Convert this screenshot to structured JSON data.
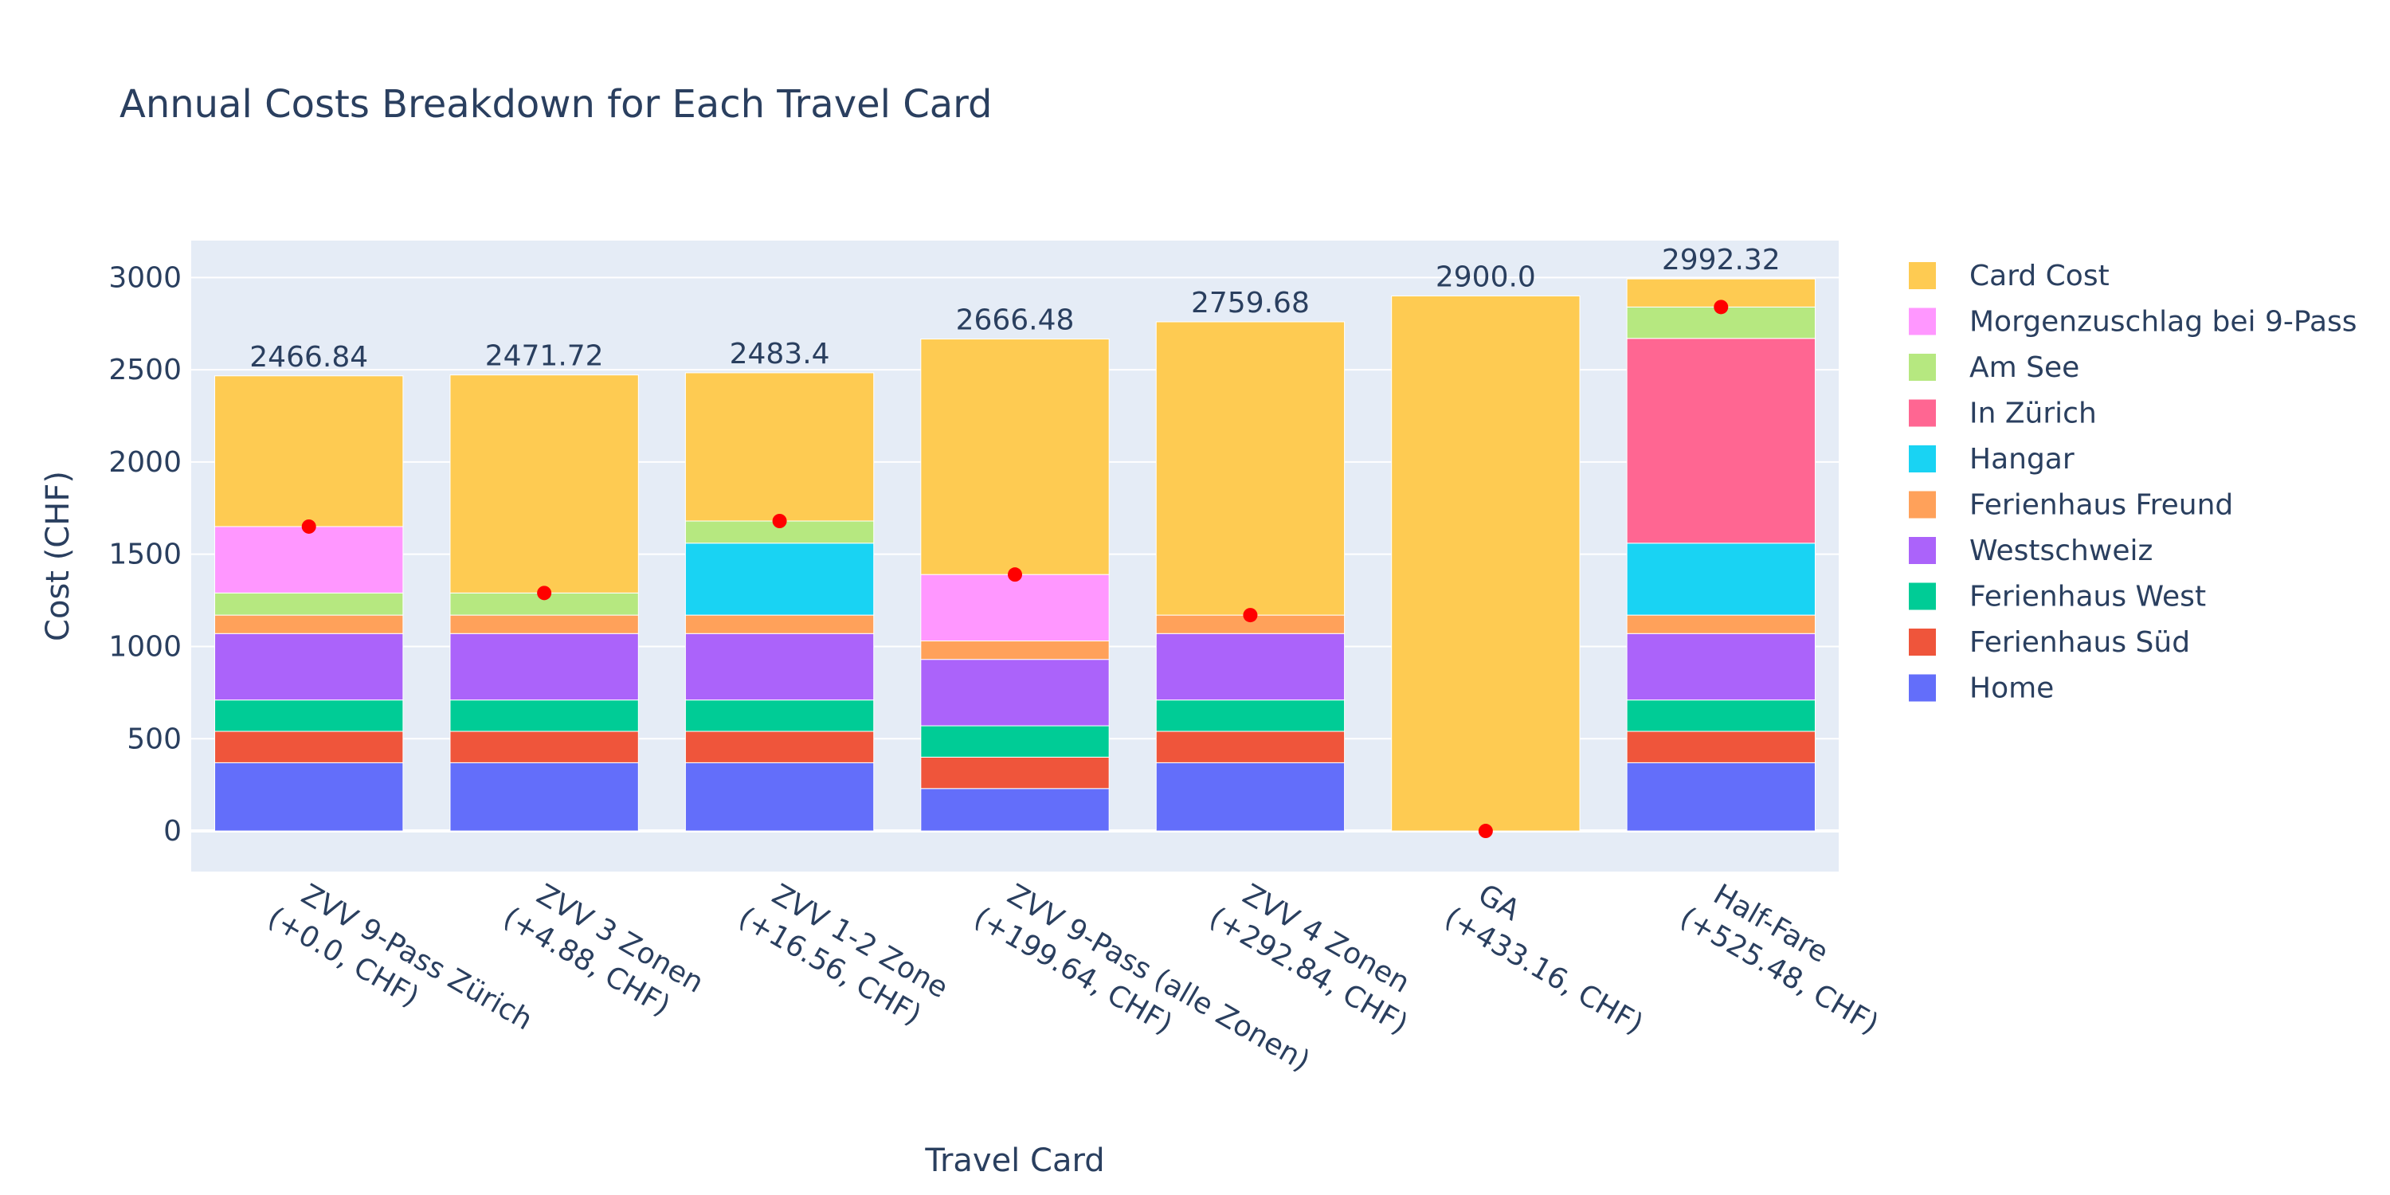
{
  "chart_data": {
    "type": "bar",
    "stacked": true,
    "title": "Annual Costs Breakdown for Each Travel Card",
    "xlabel": "Travel Card",
    "ylabel": "Cost (CHF)",
    "ylim": [
      -220,
      3200
    ],
    "yticks": [
      0,
      500,
      1000,
      1500,
      2000,
      2500,
      3000
    ],
    "grid": true,
    "legend_position": "right",
    "categories": [
      [
        "ZVV 9-Pass Zürich",
        "(+0.0, CHF)"
      ],
      [
        "ZVV 3 Zonen",
        "(+4.88, CHF)"
      ],
      [
        "ZVV 1-2 Zone",
        "(+16.56, CHF)"
      ],
      [
        "ZVV 9-Pass (alle Zonen)",
        "(+199.64, CHF)"
      ],
      [
        "ZVV 4 Zonen",
        "(+292.84, CHF)"
      ],
      [
        "GA",
        "(+433.16, CHF)"
      ],
      [
        "Half-Fare",
        "(+525.48, CHF)"
      ]
    ],
    "totals": [
      "2466.84",
      "2471.72",
      "2483.4",
      "2666.48",
      "2759.68",
      "2900.0",
      "2992.32"
    ],
    "series": [
      {
        "name": "Home",
        "color": "#636efa",
        "values": [
          370,
          370,
          370,
          230,
          370,
          0,
          370
        ]
      },
      {
        "name": "Ferienhaus Süd",
        "color": "#ef553b",
        "values": [
          170,
          170,
          170,
          170,
          170,
          0,
          170
        ]
      },
      {
        "name": "Ferienhaus West",
        "color": "#00cc96",
        "values": [
          170,
          170,
          170,
          170,
          170,
          0,
          170
        ]
      },
      {
        "name": "Westschweiz",
        "color": "#ab63fa",
        "values": [
          360,
          360,
          360,
          360,
          360,
          0,
          360
        ]
      },
      {
        "name": "Ferienhaus Freund",
        "color": "#ffa15a",
        "values": [
          100,
          100,
          100,
          100,
          100,
          0,
          100
        ]
      },
      {
        "name": "Hangar",
        "color": "#19d3f3",
        "values": [
          0,
          0,
          390,
          0,
          0,
          0,
          390
        ]
      },
      {
        "name": "In Zürich",
        "color": "#ff6692",
        "values": [
          0,
          0,
          0,
          0,
          0,
          0,
          1110
        ]
      },
      {
        "name": "Am See",
        "color": "#b6e880",
        "values": [
          120,
          120,
          120,
          0,
          0,
          0,
          170
        ]
      },
      {
        "name": "Morgenzuschlag bei 9-Pass",
        "color": "#ff97ff",
        "values": [
          360,
          0,
          0,
          360,
          0,
          0,
          0
        ]
      },
      {
        "name": "Card Cost",
        "color": "#fecb52",
        "values": [
          816.84,
          1181.72,
          803.4,
          1276.48,
          1589.68,
          2900,
          152.32
        ]
      }
    ],
    "markers": {
      "color": "#ff0000",
      "values": [
        1650,
        1290,
        1680,
        1390,
        1170,
        0,
        2840
      ]
    }
  }
}
